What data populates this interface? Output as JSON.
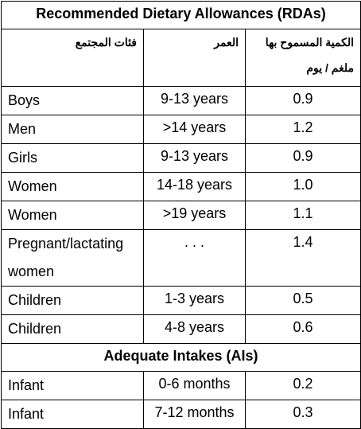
{
  "title": "Recommended Dietary Allowances (RDAs)",
  "header": {
    "group": "فئات المجتمع",
    "age": "العمر",
    "amount": [
      "الكمية المسموح بها",
      "ملغم / يوم"
    ]
  },
  "rda_rows": [
    [
      "Boys",
      "9-13 years",
      "0.9"
    ],
    [
      "Men",
      ">14 years",
      "1.2"
    ],
    [
      "Girls",
      "9-13 years",
      "0.9"
    ],
    [
      "Women",
      "14-18 years",
      "1.0"
    ],
    [
      "Women",
      ">19 years",
      "1.1"
    ],
    [
      "Pregnant/lactating women",
      ". . .",
      "1.4"
    ],
    [
      "Children",
      "1-3 years",
      "0.5"
    ],
    [
      "Children",
      "4-8 years",
      "0.6"
    ]
  ],
  "ai_title": "Adequate Intakes (AIs)",
  "ai_rows": [
    [
      "Infant",
      "0-6 months",
      "0.2"
    ],
    [
      "Infant",
      "7-12 months",
      "0.3"
    ]
  ]
}
